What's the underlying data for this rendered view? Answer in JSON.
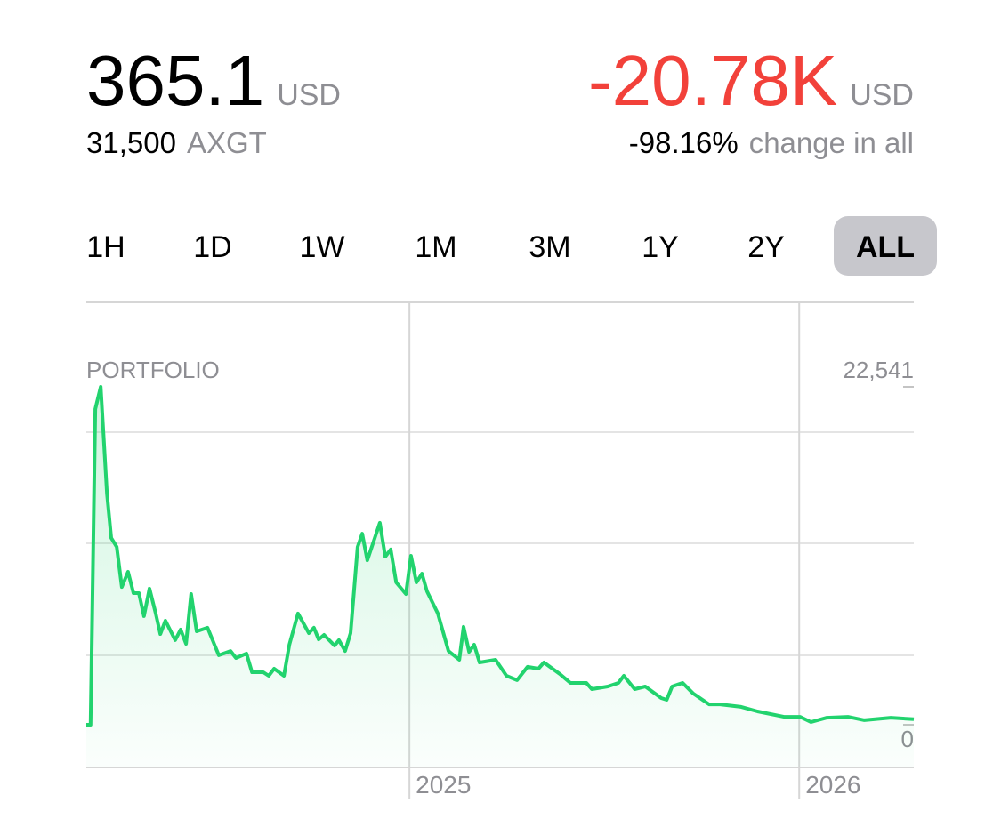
{
  "header": {
    "balance": "365.1",
    "balance_unit": "USD",
    "holding_amount": "31,500",
    "holding_symbol": "AXGT",
    "change": "-20.78K",
    "change_unit": "USD",
    "change_percent": "-98.16%",
    "change_caption": "change in all"
  },
  "timeframes": {
    "options": [
      "1H",
      "1D",
      "1W",
      "1M",
      "3M",
      "1Y",
      "2Y",
      "ALL"
    ],
    "selected_index": 7
  },
  "chart_data": {
    "type": "line",
    "label": "PORTFOLIO",
    "color": "#22d36e",
    "area": true,
    "x": [
      2024.171,
      2024.182,
      2024.194,
      2024.208,
      2024.224,
      2024.235,
      2024.249,
      2024.262,
      2024.278,
      2024.292,
      2024.306,
      2024.319,
      2024.333,
      2024.349,
      2024.361,
      2024.374,
      2024.399,
      2024.413,
      2024.427,
      2024.44,
      2024.454,
      2024.482,
      2024.511,
      2024.541,
      2024.555,
      2024.582,
      2024.596,
      2024.625,
      2024.639,
      2024.653,
      2024.678,
      2024.692,
      2024.714,
      2024.742,
      2024.755,
      2024.767,
      2024.781,
      2024.808,
      2024.819,
      2024.835,
      2024.849,
      2024.867,
      2024.879,
      2024.892,
      2024.924,
      2024.938,
      2024.952,
      2024.966,
      2024.991,
      2025.004,
      2025.018,
      2025.032,
      2025.045,
      2025.073,
      2025.1,
      2025.128,
      2025.139,
      2025.153,
      2025.166,
      2025.18,
      2025.221,
      2025.249,
      2025.276,
      2025.303,
      2025.331,
      2025.345,
      2025.386,
      2025.413,
      2025.454,
      2025.468,
      2025.509,
      2025.536,
      2025.55,
      2025.578,
      2025.605,
      2025.646,
      2025.66,
      2025.674,
      2025.701,
      2025.728,
      2025.769,
      2025.797,
      2025.851,
      2025.893,
      2025.961,
      2026.002,
      2026.03,
      2026.071,
      2026.125,
      2026.167,
      2026.235,
      2026.294
    ],
    "values": [
      0,
      0,
      21060,
      22541,
      15420,
      12460,
      11860,
      9190,
      10200,
      8780,
      8780,
      7240,
      9080,
      7420,
      6050,
      6940,
      5640,
      6350,
      5400,
      8720,
      6230,
      6470,
      4630,
      4920,
      4450,
      4750,
      3500,
      3500,
      3260,
      3740,
      3260,
      5340,
      7420,
      6110,
      6470,
      5690,
      5990,
      5280,
      5640,
      4920,
      6110,
      11860,
      12750,
      10970,
      13470,
      11210,
      11690,
      9490,
      8720,
      11270,
      9490,
      10080,
      8900,
      7420,
      4920,
      4330,
      6530,
      4860,
      5340,
      4150,
      4330,
      3260,
      2970,
      3860,
      3740,
      4150,
      3380,
      2790,
      2790,
      2370,
      2550,
      2790,
      3260,
      2370,
      2550,
      1780,
      1660,
      2550,
      2790,
      2080,
      1360,
      1360,
      1190,
      890,
      530,
      530,
      180,
      470,
      530,
      300,
      470,
      365.1
    ],
    "xlim": [
      2024.171,
      2026.294
    ],
    "xticks": [
      2025,
      2026
    ],
    "ylim": [
      0,
      22541
    ],
    "yticks": [
      0,
      {
        "value": 22541,
        "label": "22,541"
      }
    ]
  }
}
